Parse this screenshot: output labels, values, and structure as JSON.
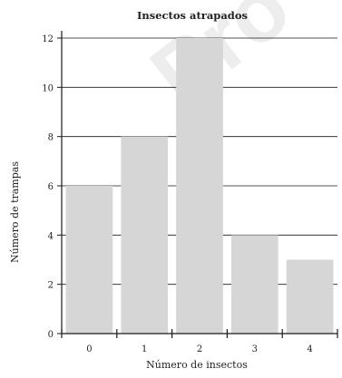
{
  "chart_data": {
    "type": "bar",
    "title": "Insectos atrapados",
    "xlabel": "Número de insectos",
    "ylabel": "Número de trampas",
    "categories": [
      "0",
      "1",
      "2",
      "3",
      "4"
    ],
    "values": [
      6,
      8,
      12,
      4,
      3
    ],
    "ylim": [
      0,
      12
    ],
    "yticks": [
      "0",
      "2",
      "4",
      "6",
      "8",
      "10",
      "12"
    ],
    "grid": true,
    "legend": "none",
    "colors": {
      "bar": "#d6d6d6",
      "grid": "#1a1a1a",
      "axis": "#1a1a1a",
      "text": "#222222"
    }
  },
  "watermark": {
    "text": "Pro Cic",
    "color": "#ededed"
  }
}
